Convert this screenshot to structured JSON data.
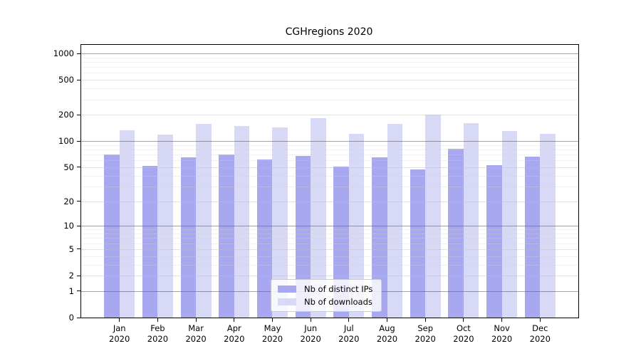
{
  "chart_data": {
    "type": "bar",
    "title": "CGHregions 2020",
    "yscale": "log1p",
    "ylim": [
      0,
      1250
    ],
    "yticks": [
      0,
      1,
      2,
      5,
      10,
      20,
      50,
      100,
      200,
      500,
      1000
    ],
    "minor_ticks": [
      3,
      4,
      6,
      7,
      8,
      9,
      30,
      40,
      60,
      70,
      80,
      90,
      300,
      400,
      600,
      700,
      800,
      900
    ],
    "decade_ticks": [
      1,
      10,
      100,
      1000
    ],
    "categories": [
      "Jan",
      "Feb",
      "Mar",
      "Apr",
      "May",
      "Jun",
      "Jul",
      "Aug",
      "Sep",
      "Oct",
      "Nov",
      "Dec"
    ],
    "category_year": "2020",
    "series": [
      {
        "name": "Nb of distinct IPs",
        "color": "#a8a8f0",
        "values": [
          70,
          52,
          65,
          70,
          61,
          68,
          51,
          65,
          47,
          81,
          53,
          66
        ]
      },
      {
        "name": "Nb of downloads",
        "color": "#d8d8f7",
        "values": [
          133,
          119,
          158,
          149,
          144,
          184,
          120,
          157,
          200,
          160,
          130,
          122
        ]
      }
    ],
    "legend_position": "lower center",
    "grid": true
  },
  "colors": {
    "background": "#ffffff",
    "spine": "#000000",
    "grid_decade": "rgba(100,100,100,0.6)",
    "grid_major": "rgba(190,190,190,0.45)",
    "grid_minor": "rgba(212,212,212,0.35)",
    "legend_border": "#cccccc",
    "legend_bg": "rgba(255,255,255,0.8)",
    "text": "#000000"
  }
}
